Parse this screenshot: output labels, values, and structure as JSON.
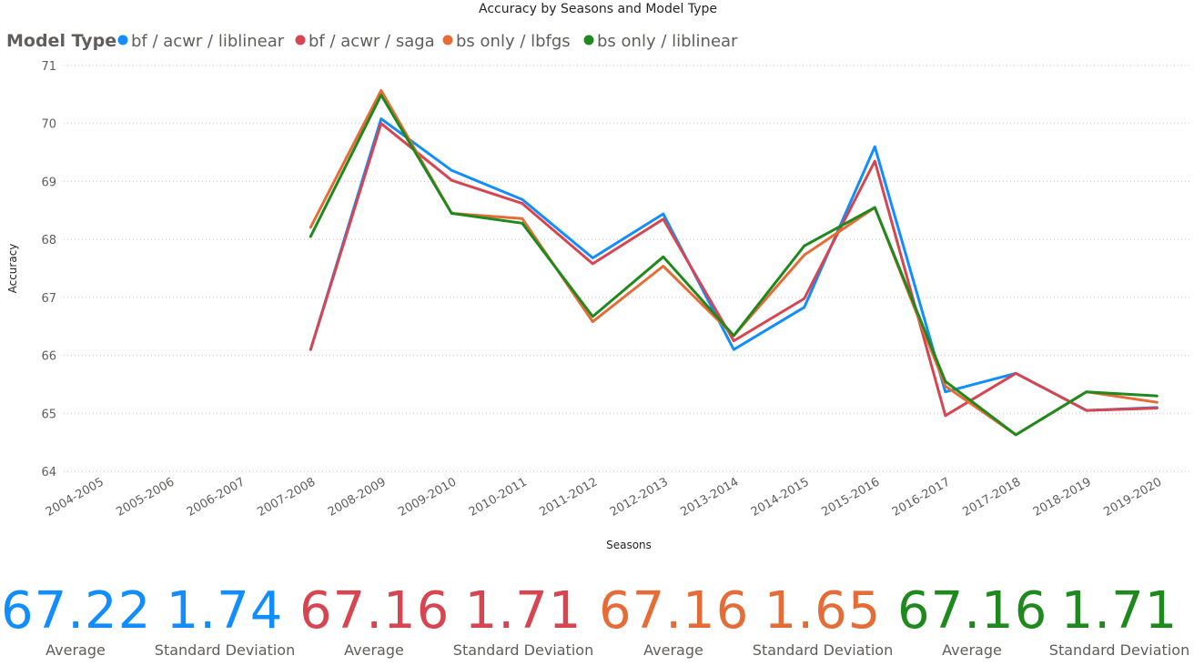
{
  "chart_data": {
    "type": "line",
    "title": "Accuracy by Seasons and Model Type",
    "xlabel": "Seasons",
    "ylabel": "Accuracy",
    "legend_title": "Model Type",
    "legend_position": "top-left",
    "ylim": [
      64,
      71
    ],
    "yticks": [
      64,
      65,
      66,
      67,
      68,
      69,
      70,
      71
    ],
    "grid": true,
    "categories": [
      "2004-2005",
      "2005-2006",
      "2006-2007",
      "2007-2008",
      "2008-2009",
      "2009-2010",
      "2010-2011",
      "2011-2012",
      "2012-2013",
      "2013-2014",
      "2014-2015",
      "2015-2016",
      "2016-2017",
      "2017-2018",
      "2018-2019",
      "2019-2020"
    ],
    "series": [
      {
        "name": "bf / acwr / liblinear",
        "color": "#118dff",
        "values": [
          null,
          null,
          null,
          66.1,
          70.08,
          69.19,
          68.69,
          67.68,
          68.44,
          66.1,
          66.83,
          69.6,
          65.37,
          65.69,
          65.05,
          65.1
        ]
      },
      {
        "name": "bf / acwr / saga",
        "color": "#d64550",
        "values": [
          null,
          null,
          null,
          66.1,
          70.0,
          69.02,
          68.62,
          67.58,
          68.35,
          66.25,
          66.98,
          69.35,
          64.96,
          65.69,
          65.05,
          65.09
        ]
      },
      {
        "name": "bs only / lbfgs",
        "color": "#e66c37",
        "values": [
          null,
          null,
          null,
          68.21,
          70.57,
          68.45,
          68.36,
          66.58,
          67.54,
          66.34,
          67.73,
          68.55,
          65.47,
          64.63,
          65.37,
          65.19
        ]
      },
      {
        "name": "bs only / liblinear",
        "color": "#1e8a1e",
        "values": [
          null,
          null,
          null,
          68.05,
          70.49,
          68.45,
          68.28,
          66.67,
          67.7,
          66.34,
          67.89,
          68.55,
          65.55,
          64.63,
          65.37,
          65.3
        ]
      }
    ]
  },
  "kpis": [
    {
      "value": "67.22",
      "label": "Average",
      "color": "#118dff"
    },
    {
      "value": "1.74",
      "label": "Standard Deviation",
      "color": "#118dff"
    },
    {
      "value": "67.16",
      "label": "Average",
      "color": "#d64550"
    },
    {
      "value": "1.71",
      "label": "Standard Deviation",
      "color": "#d64550"
    },
    {
      "value": "67.16",
      "label": "Average",
      "color": "#e66c37"
    },
    {
      "value": "1.65",
      "label": "Standard Deviation",
      "color": "#e66c37"
    },
    {
      "value": "67.16",
      "label": "Average",
      "color": "#1e8a1e"
    },
    {
      "value": "1.71",
      "label": "Standard Deviation",
      "color": "#1e8a1e"
    }
  ]
}
